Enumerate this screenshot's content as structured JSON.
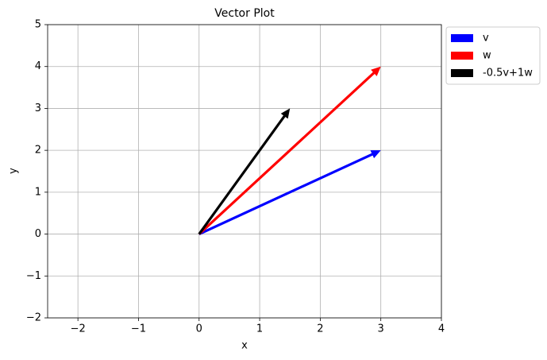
{
  "chart_data": {
    "type": "quiver",
    "title": "Vector Plot",
    "x_label": "x",
    "y_label": "y",
    "series": [
      {
        "name": "v",
        "color": "#0000ff",
        "origin": [
          0,
          0
        ],
        "vector": [
          3,
          2
        ]
      },
      {
        "name": "w",
        "color": "#ff0000",
        "origin": [
          0,
          0
        ],
        "vector": [
          3,
          4
        ]
      },
      {
        "name": "-0.5v+1w",
        "color": "#000000",
        "origin": [
          0,
          0
        ],
        "vector": [
          1.5,
          3
        ]
      }
    ],
    "xlim": [
      -2.5,
      4
    ],
    "ylim": [
      -2,
      5
    ],
    "xticks": [
      {
        "value": -2,
        "label": "−2"
      },
      {
        "value": -1,
        "label": "−1"
      },
      0,
      1,
      2,
      3,
      4
    ],
    "yticks": [
      {
        "value": -2,
        "label": "−2"
      },
      {
        "value": -1,
        "label": "−1"
      },
      0,
      1,
      2,
      3,
      4,
      5
    ],
    "grid": true,
    "legend": "outside upper right"
  }
}
